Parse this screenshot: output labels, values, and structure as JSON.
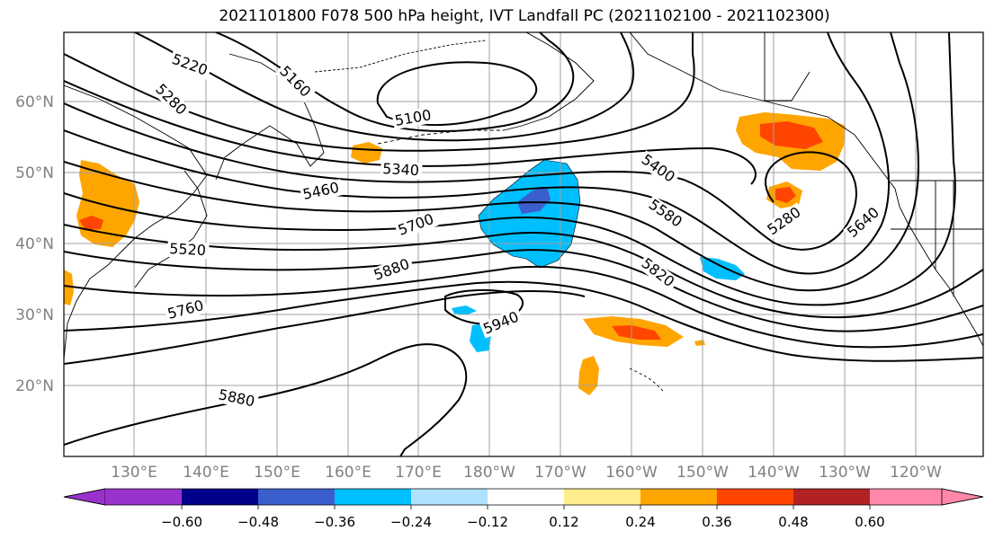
{
  "title": "2021101800 F078 500 hPa height, IVT Landfall PC (2021102100 - 2021102300)",
  "lat_labels": [
    "60°N",
    "50°N",
    "40°N",
    "30°N",
    "20°N"
  ],
  "lon_labels": [
    "130°E",
    "140°E",
    "150°E",
    "160°E",
    "170°E",
    "180°W",
    "170°W",
    "160°W",
    "150°W",
    "140°W",
    "130°W",
    "120°W"
  ],
  "contour_labels": [
    "5220",
    "5160",
    "5280",
    "5100",
    "5340",
    "5460",
    "5400",
    "5700",
    "5580",
    "5520",
    "5880",
    "5820",
    "5280",
    "5640",
    "5760",
    "5940",
    "5880"
  ],
  "colorbar": {
    "colors": [
      "#9932cc",
      "#00008b",
      "#3a5fcd",
      "#00bfff",
      "#b0e2ff",
      "#ffffff",
      "#ffec8b",
      "#ffa500",
      "#ff4500",
      "#b22222",
      "#ff88aa"
    ],
    "tick_labels": [
      "−0.60",
      "−0.48",
      "−0.36",
      "−0.24",
      "−0.12",
      "0.12",
      "0.24",
      "0.36",
      "0.48",
      "0.60"
    ]
  },
  "colors": {
    "tick_label": "#808080",
    "grid": "#a0a0a0",
    "contour": "#000000"
  }
}
